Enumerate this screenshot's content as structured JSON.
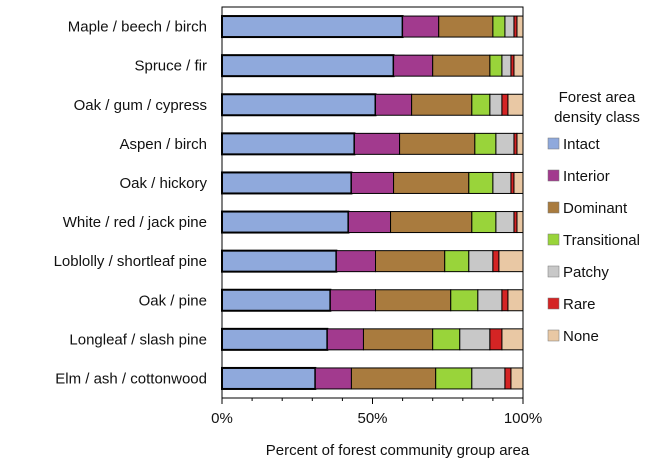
{
  "chart_data": {
    "type": "bar",
    "orientation": "horizontal",
    "stacked": true,
    "title": "",
    "xlabel": "Percent of forest community group area",
    "ylabel": "",
    "xlim": [
      0,
      100
    ],
    "x_tick_labels": [
      "0%",
      "50%",
      "100%"
    ],
    "grid": false,
    "legend_position": "right",
    "legend_title": "Forest area density class",
    "legend_title_lines": [
      "Forest area",
      "density class"
    ],
    "categories": [
      "Maple / beech / birch",
      "Spruce / fir",
      "Oak / gum / cypress",
      "Aspen / birch",
      "Oak / hickory",
      "White / red / jack pine",
      "Loblolly / shortleaf pine",
      "Oak / pine",
      "Longleaf / slash pine",
      "Elm / ash / cottonwood"
    ],
    "series": [
      {
        "name": "Intact",
        "color": "#8fa9dc",
        "values": [
          60,
          57,
          51,
          44,
          43,
          42,
          38,
          36,
          35,
          31
        ]
      },
      {
        "name": "Interior",
        "color": "#a23a8e",
        "values": [
          12,
          13,
          12,
          15,
          14,
          14,
          13,
          15,
          12,
          12
        ]
      },
      {
        "name": "Dominant",
        "color": "#a97b3e",
        "values": [
          18,
          19,
          20,
          25,
          25,
          27,
          23,
          25,
          23,
          28
        ]
      },
      {
        "name": "Transitional",
        "color": "#99d43a",
        "values": [
          4,
          4,
          6,
          7,
          8,
          8,
          8,
          9,
          9,
          12
        ]
      },
      {
        "name": "Patchy",
        "color": "#c8c8c8",
        "values": [
          3,
          3,
          4,
          6,
          6,
          6,
          8,
          8,
          10,
          11
        ]
      },
      {
        "name": "Rare",
        "color": "#d42424",
        "values": [
          1,
          1,
          2,
          1,
          1,
          1,
          2,
          2,
          4,
          2
        ]
      },
      {
        "name": "None",
        "color": "#e9c8a4",
        "values": [
          2,
          3,
          5,
          2,
          3,
          2,
          8,
          5,
          7,
          4
        ]
      }
    ]
  }
}
